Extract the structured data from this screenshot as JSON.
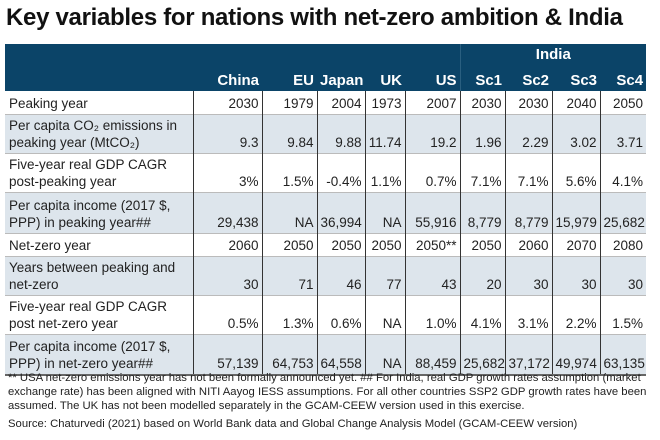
{
  "title": "Key variables for nations with net-zero ambition & India",
  "colors": {
    "header_bg": "#0b4468",
    "alt_row_bg": "#dde5ec"
  },
  "table": {
    "group_header": "India",
    "columns": [
      "China",
      "EU",
      "Japan",
      "UK",
      "US",
      "Sc1",
      "Sc2",
      "Sc3",
      "Sc4"
    ],
    "rows": [
      {
        "label": "Peaking year",
        "values": [
          "2030",
          "1979",
          "2004",
          "1973",
          "2007",
          "2030",
          "2030",
          "2040",
          "2050"
        ]
      },
      {
        "label": "Per capita CO₂ emissions in peaking year (MtCO₂)",
        "values": [
          "9.3",
          "9.84",
          "9.88",
          "11.74",
          "19.2",
          "1.96",
          "2.29",
          "3.02",
          "3.71"
        ]
      },
      {
        "label": "Five-year real GDP CAGR post-peaking year",
        "values": [
          "3%",
          "1.5%",
          "-0.4%",
          "1.1%",
          "0.7%",
          "7.1%",
          "7.1%",
          "5.6%",
          "4.1%"
        ]
      },
      {
        "label": "Per capita income (2017 $, PPP) in peaking year##",
        "values": [
          "29,438",
          "NA",
          "36,994",
          "NA",
          "55,916",
          "8,779",
          "8,779",
          "15,979",
          "25,682"
        ]
      },
      {
        "label": "Net-zero year",
        "values": [
          "2060",
          "2050",
          "2050",
          "2050",
          "2050**",
          "2050",
          "2060",
          "2070",
          "2080"
        ]
      },
      {
        "label": "Years between peaking and net-zero",
        "values": [
          "30",
          "71",
          "46",
          "77",
          "43",
          "20",
          "30",
          "30",
          "30"
        ]
      },
      {
        "label": "Five-year real GDP CAGR post net-zero year",
        "values": [
          "0.5%",
          "1.3%",
          "0.6%",
          "NA",
          "1.0%",
          "4.1%",
          "3.1%",
          "2.2%",
          "1.5%"
        ]
      },
      {
        "label": "Per capita income (2017 $, PPP) in net-zero year##",
        "values": [
          "57,139",
          "64,753",
          "64,558",
          "NA",
          "88,459",
          "25,682",
          "37,172",
          "49,974",
          "63,135"
        ]
      }
    ]
  },
  "footnote": "** USA net-zero emissions year has not been formally announced yet. ## For India, real GDP growth rates assumption (market exchange rate) has been aligned with NITI Aayog IESS assumptions. For all other countries SSP2 GDP growth rates have been assumed. The UK has not been modelled separately in the GCAM-CEEW version used in this exercise.",
  "source": "Source: Chaturvedi (2021) based on World Bank data and Global Change Analysis Model (GCAM-CEEW version)"
}
